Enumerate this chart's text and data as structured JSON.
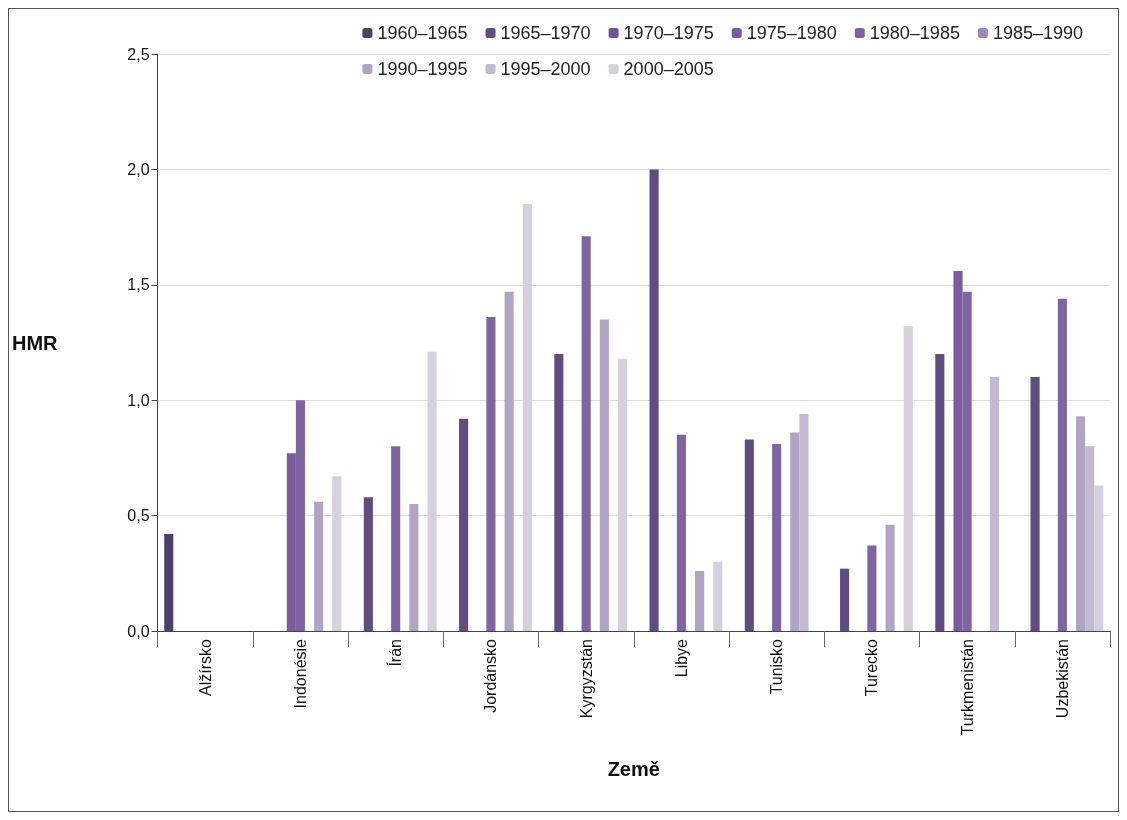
{
  "chart_data": {
    "type": "bar",
    "xlabel": "Země",
    "ylabel": "HMR",
    "categories": [
      "Alžírsko",
      "Indonésie",
      "Írán",
      "Jordánsko",
      "Kyrgyzstán",
      "Libye",
      "Tunisko",
      "Turecko",
      "Turkmenistán",
      "Uzbekistán"
    ],
    "series": [
      {
        "name": "1960–1965",
        "color": "#4f3f6b",
        "values": [
          0.42,
          null,
          null,
          null,
          null,
          null,
          null,
          null,
          null,
          null
        ]
      },
      {
        "name": "1965–1970",
        "color": "#604c80",
        "values": [
          null,
          null,
          0.58,
          0.92,
          1.2,
          2.0,
          0.83,
          0.27,
          1.2,
          1.1
        ]
      },
      {
        "name": "1970–1975",
        "color": "#6e5693",
        "values": [
          null,
          null,
          null,
          null,
          null,
          null,
          null,
          null,
          null,
          null
        ]
      },
      {
        "name": "1975–1980",
        "color": "#7a5c9e",
        "values": [
          null,
          0.77,
          null,
          null,
          null,
          null,
          null,
          null,
          1.56,
          null
        ]
      },
      {
        "name": "1980–1985",
        "color": "#8064a2",
        "values": [
          null,
          1.0,
          0.8,
          1.36,
          1.71,
          0.85,
          0.81,
          0.37,
          1.47,
          1.44
        ]
      },
      {
        "name": "1985–1990",
        "color": "#9d8ab8",
        "values": [
          null,
          null,
          null,
          null,
          null,
          null,
          null,
          null,
          null,
          null
        ]
      },
      {
        "name": "1990–1995",
        "color": "#b0a4c4",
        "values": [
          null,
          0.56,
          0.55,
          1.47,
          1.35,
          0.26,
          0.86,
          0.46,
          null,
          0.93
        ]
      },
      {
        "name": "1995–2000",
        "color": "#c2b9d2",
        "values": [
          null,
          null,
          null,
          null,
          null,
          null,
          0.94,
          null,
          1.1,
          0.8
        ]
      },
      {
        "name": "2000–2005",
        "color": "#d5d0de",
        "values": [
          null,
          0.67,
          1.21,
          1.85,
          1.18,
          0.3,
          null,
          1.32,
          null,
          0.63
        ]
      }
    ],
    "ylim": [
      0,
      2.5
    ],
    "yticks": [
      {
        "value": 0,
        "label": "0,0"
      },
      {
        "value": 0.5,
        "label": "0,5"
      },
      {
        "value": 1,
        "label": "1,0"
      },
      {
        "value": 1.5,
        "label": "1,5"
      },
      {
        "value": 2,
        "label": "2,0"
      },
      {
        "value": 2.5,
        "label": "2,5"
      }
    ],
    "grid": "y",
    "legend": "top right"
  }
}
